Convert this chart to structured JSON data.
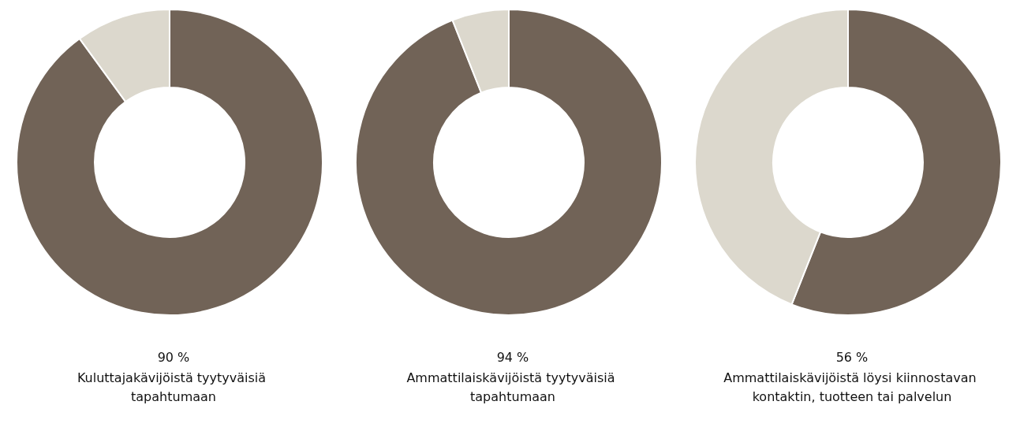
{
  "chart_data": [
    {
      "type": "donut",
      "title": "90 %",
      "subtitle": "Kuluttajakävijöistä tyytyväisiä tapahtumaan",
      "categories": [
        null,
        null
      ],
      "values": [
        90,
        10
      ],
      "colors": [
        "#716357",
        "#dcd8cd"
      ]
    },
    {
      "type": "donut",
      "title": "94 %",
      "subtitle": "Ammattilaiskävijöistä tyytyväisiä tapahtumaan",
      "categories": [
        null,
        null
      ],
      "values": [
        94,
        6
      ],
      "colors": [
        "#716357",
        "#dcd8cd"
      ]
    },
    {
      "type": "donut",
      "title": "56 %",
      "subtitle": "Ammattilaiskävijöistä löysi kiinnostavan kontaktin, tuotteen tai palvelun",
      "categories": [
        null,
        null
      ],
      "values": [
        56,
        44
      ],
      "colors": [
        "#716357",
        "#dcd8cd"
      ]
    }
  ]
}
